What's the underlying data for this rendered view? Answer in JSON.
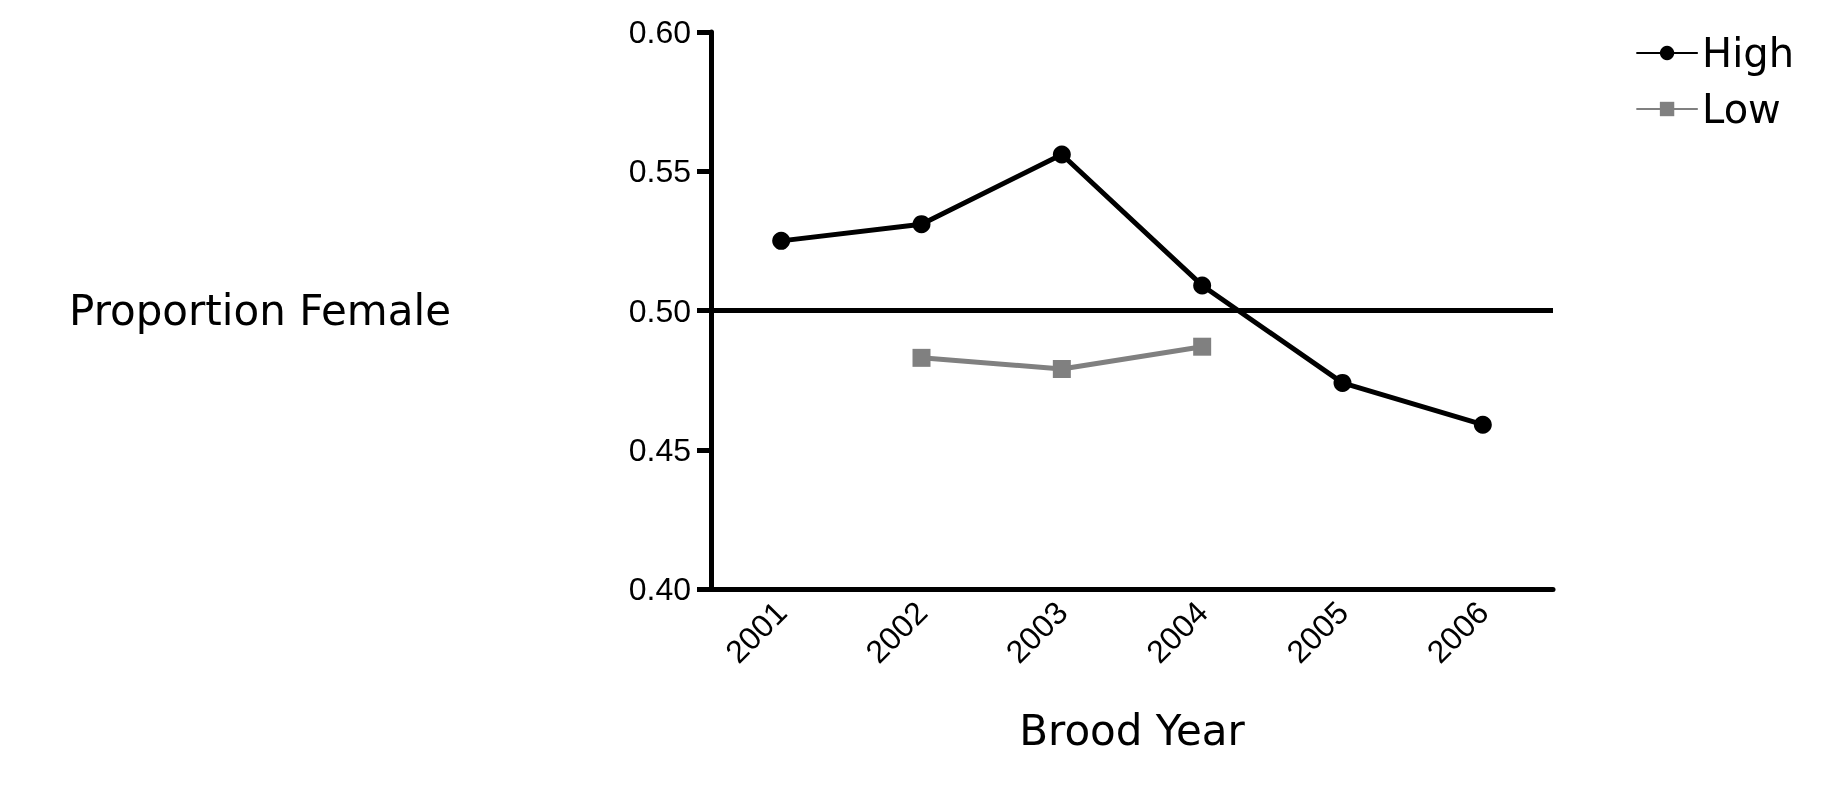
{
  "chart_data": {
    "type": "line",
    "xlabel": "Brood Year",
    "ylabel": "Proportion Female",
    "categories": [
      "2001",
      "2002",
      "2003",
      "2004",
      "2005",
      "2006"
    ],
    "series": [
      {
        "name": "High",
        "color": "#000000",
        "marker": "circle",
        "values": [
          0.525,
          0.531,
          0.556,
          0.509,
          0.474,
          0.459
        ]
      },
      {
        "name": "Low",
        "color": "#808080",
        "marker": "square",
        "values": [
          null,
          0.483,
          0.479,
          0.487,
          null,
          null
        ]
      }
    ],
    "ylim": [
      0.4,
      0.6
    ],
    "yticks": [
      {
        "value": 0.4,
        "label": "0.40"
      },
      0.45,
      {
        "value": 0.5,
        "label": "0.50"
      },
      0.55,
      {
        "value": 0.6,
        "label": "0.60"
      }
    ],
    "ref_lines": [
      {
        "axis": "y",
        "value": 0.5,
        "label": null,
        "color": "#000000"
      }
    ],
    "grid": false,
    "legend": "top right",
    "line_style": "solid"
  }
}
